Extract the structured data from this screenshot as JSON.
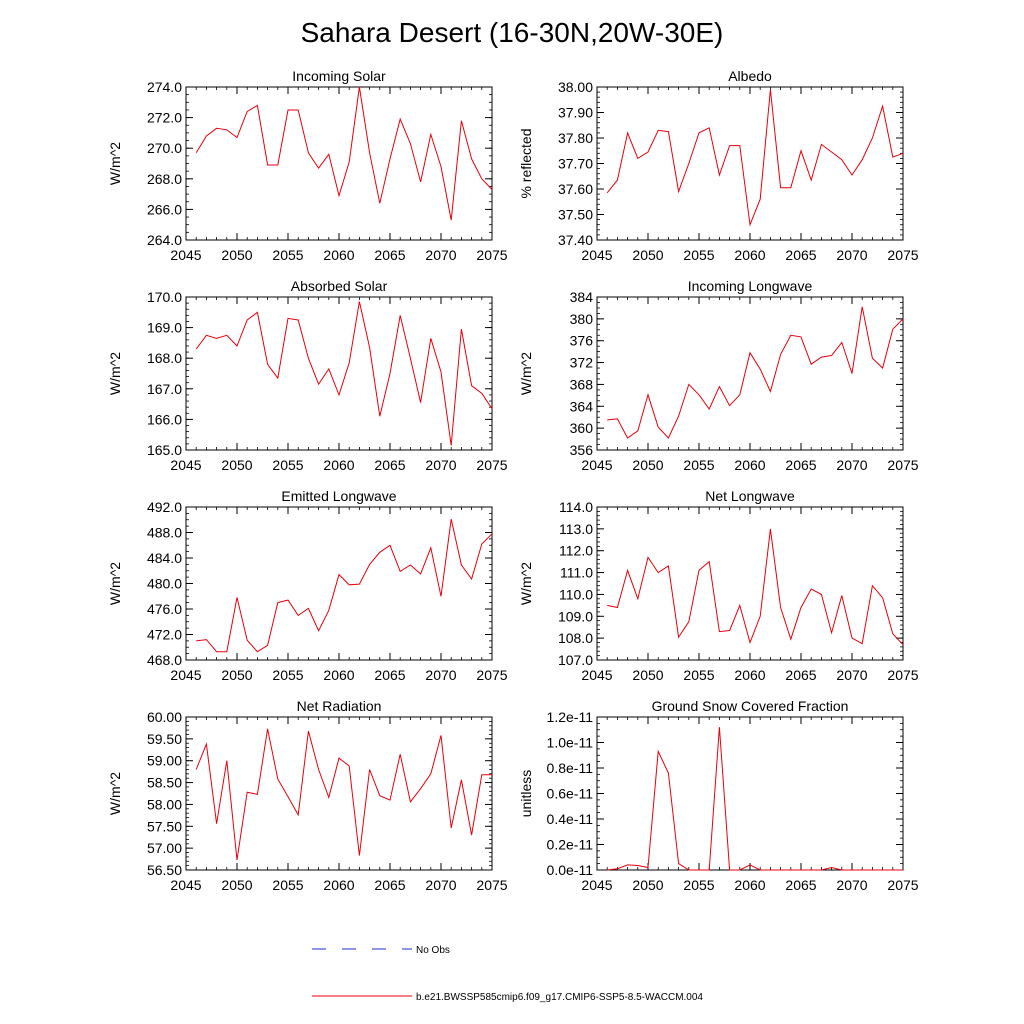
{
  "title": "Sahara Desert (16-30N,20W-30E)",
  "colors": {
    "model_line": "#e8000b",
    "obs_line": "#1f2dd0",
    "axis": "#000000"
  },
  "legend": {
    "obs_label": "No Obs",
    "model_label": "b.e21.BWSSP585cmip6.f09_g17.CMIP6-SSP5-8.5-WACCM.004"
  },
  "chart_data": [
    {
      "type": "line",
      "title": "Incoming Solar",
      "ylabel": "W/m^2",
      "xlim": [
        2045,
        2075
      ],
      "ylim": [
        264,
        274
      ],
      "xticks": [
        2045,
        2050,
        2055,
        2060,
        2065,
        2070,
        2075
      ],
      "yticks": [
        264,
        266,
        268,
        270,
        272,
        274
      ],
      "ytick_labels": [
        "264.0",
        "266.0",
        "268.0",
        "270.0",
        "272.0",
        "274.0"
      ],
      "yminor": 0.5,
      "x": [
        2046,
        2047,
        2048,
        2049,
        2050,
        2051,
        2052,
        2053,
        2054,
        2055,
        2056,
        2057,
        2058,
        2059,
        2060,
        2061,
        2062,
        2063,
        2064,
        2065,
        2066,
        2067,
        2068,
        2069,
        2070,
        2071,
        2072,
        2073,
        2074,
        2075
      ],
      "values": [
        269.7,
        270.8,
        271.3,
        271.2,
        270.7,
        272.4,
        272.8,
        268.9,
        268.9,
        272.5,
        272.5,
        269.7,
        268.7,
        269.6,
        266.9,
        269.1,
        274.1,
        269.7,
        266.4,
        269.3,
        271.9,
        270.3,
        267.8,
        270.9,
        268.8,
        265.3,
        271.8,
        269.3,
        268.0,
        267.3
      ]
    },
    {
      "type": "line",
      "title": "Albedo",
      "ylabel": "% reflected",
      "xlim": [
        2045,
        2075
      ],
      "ylim": [
        37.4,
        38.0
      ],
      "xticks": [
        2045,
        2050,
        2055,
        2060,
        2065,
        2070,
        2075
      ],
      "yticks": [
        37.4,
        37.5,
        37.6,
        37.7,
        37.8,
        37.9,
        38.0
      ],
      "ytick_labels": [
        "37.40",
        "37.50",
        "37.60",
        "37.70",
        "37.80",
        "37.90",
        "38.00"
      ],
      "yminor": 0.02,
      "x": [
        2046,
        2047,
        2048,
        2049,
        2050,
        2051,
        2052,
        2053,
        2054,
        2055,
        2056,
        2057,
        2058,
        2059,
        2060,
        2061,
        2062,
        2063,
        2064,
        2065,
        2066,
        2067,
        2068,
        2069,
        2070,
        2071,
        2072,
        2073,
        2074,
        2075
      ],
      "values": [
        37.585,
        37.635,
        37.82,
        37.72,
        37.745,
        37.83,
        37.825,
        37.59,
        37.7,
        37.82,
        37.84,
        37.655,
        37.77,
        37.77,
        37.46,
        37.56,
        37.99,
        37.605,
        37.605,
        37.75,
        37.635,
        37.775,
        37.745,
        37.715,
        37.655,
        37.715,
        37.8,
        37.925,
        37.725,
        37.74
      ]
    },
    {
      "type": "line",
      "title": "Absorbed Solar",
      "ylabel": "W/m^2",
      "xlim": [
        2045,
        2075
      ],
      "ylim": [
        165,
        170
      ],
      "xticks": [
        2045,
        2050,
        2055,
        2060,
        2065,
        2070,
        2075
      ],
      "yticks": [
        165,
        166,
        167,
        168,
        169,
        170
      ],
      "ytick_labels": [
        "165.0",
        "166.0",
        "167.0",
        "168.0",
        "169.0",
        "170.0"
      ],
      "yminor": 0.2,
      "x": [
        2046,
        2047,
        2048,
        2049,
        2050,
        2051,
        2052,
        2053,
        2054,
        2055,
        2056,
        2057,
        2058,
        2059,
        2060,
        2061,
        2062,
        2063,
        2064,
        2065,
        2066,
        2067,
        2068,
        2069,
        2070,
        2071,
        2072,
        2073,
        2074,
        2075
      ],
      "values": [
        168.3,
        168.75,
        168.65,
        168.75,
        168.4,
        169.25,
        169.5,
        167.8,
        167.35,
        169.3,
        169.25,
        168.0,
        167.15,
        167.65,
        166.8,
        167.85,
        169.85,
        168.35,
        166.1,
        167.5,
        169.4,
        168.0,
        166.55,
        168.65,
        167.55,
        165.15,
        168.95,
        167.1,
        166.85,
        166.35
      ]
    },
    {
      "type": "line",
      "title": "Incoming Longwave",
      "ylabel": "W/m^2",
      "xlim": [
        2045,
        2075
      ],
      "ylim": [
        356,
        384
      ],
      "xticks": [
        2045,
        2050,
        2055,
        2060,
        2065,
        2070,
        2075
      ],
      "yticks": [
        356,
        360,
        364,
        368,
        372,
        376,
        380,
        384
      ],
      "ytick_labels": [
        "356",
        "360",
        "364",
        "368",
        "372",
        "376",
        "380",
        "384"
      ],
      "yminor": 1,
      "x": [
        2046,
        2047,
        2048,
        2049,
        2050,
        2051,
        2052,
        2053,
        2054,
        2055,
        2056,
        2057,
        2058,
        2059,
        2060,
        2061,
        2062,
        2063,
        2064,
        2065,
        2066,
        2067,
        2068,
        2069,
        2070,
        2071,
        2072,
        2073,
        2074,
        2075
      ],
      "values": [
        361.5,
        361.7,
        358.2,
        359.5,
        366.1,
        360.2,
        358.2,
        362.2,
        368.0,
        366.1,
        363.5,
        367.6,
        364.1,
        366.1,
        373.8,
        370.8,
        366.7,
        373.5,
        377.0,
        376.7,
        371.7,
        373.0,
        373.3,
        375.7,
        370.0,
        382.2,
        372.8,
        371.0,
        378.1,
        380.0
      ]
    },
    {
      "type": "line",
      "title": "Emitted Longwave",
      "ylabel": "W/m^2",
      "xlim": [
        2045,
        2075
      ],
      "ylim": [
        468,
        492
      ],
      "xticks": [
        2045,
        2050,
        2055,
        2060,
        2065,
        2070,
        2075
      ],
      "yticks": [
        468,
        472,
        476,
        480,
        484,
        488,
        492
      ],
      "ytick_labels": [
        "468.0",
        "472.0",
        "476.0",
        "480.0",
        "484.0",
        "488.0",
        "492.0"
      ],
      "yminor": 1,
      "x": [
        2046,
        2047,
        2048,
        2049,
        2050,
        2051,
        2052,
        2053,
        2054,
        2055,
        2056,
        2057,
        2058,
        2059,
        2060,
        2061,
        2062,
        2063,
        2064,
        2065,
        2066,
        2067,
        2068,
        2069,
        2070,
        2071,
        2072,
        2073,
        2074,
        2075
      ],
      "values": [
        471.0,
        471.2,
        469.3,
        469.3,
        477.8,
        471.1,
        469.3,
        470.3,
        477.0,
        477.4,
        475.0,
        476.1,
        472.6,
        475.8,
        481.4,
        479.8,
        479.9,
        483.0,
        484.9,
        486.0,
        481.9,
        482.9,
        481.5,
        485.6,
        478.0,
        490.1,
        482.9,
        480.7,
        486.2,
        487.8
      ]
    },
    {
      "type": "line",
      "title": "Net Longwave",
      "ylabel": "W/m^2",
      "xlim": [
        2045,
        2075
      ],
      "ylim": [
        107,
        114
      ],
      "xticks": [
        2045,
        2050,
        2055,
        2060,
        2065,
        2070,
        2075
      ],
      "yticks": [
        107,
        108,
        109,
        110,
        111,
        112,
        113,
        114
      ],
      "ytick_labels": [
        "107.0",
        "108.0",
        "109.0",
        "110.0",
        "111.0",
        "112.0",
        "113.0",
        "114.0"
      ],
      "yminor": 0.2,
      "x": [
        2046,
        2047,
        2048,
        2049,
        2050,
        2051,
        2052,
        2053,
        2054,
        2055,
        2056,
        2057,
        2058,
        2059,
        2060,
        2061,
        2062,
        2063,
        2064,
        2065,
        2066,
        2067,
        2068,
        2069,
        2070,
        2071,
        2072,
        2073,
        2074,
        2075
      ],
      "values": [
        109.5,
        109.4,
        111.1,
        109.8,
        111.7,
        111.0,
        111.3,
        108.05,
        108.75,
        111.1,
        111.5,
        108.3,
        108.35,
        109.5,
        107.8,
        109.0,
        113.0,
        109.4,
        107.95,
        109.4,
        110.25,
        110.0,
        108.25,
        109.95,
        108.0,
        107.75,
        110.4,
        109.85,
        108.2,
        107.7
      ]
    },
    {
      "type": "line",
      "title": "Net Radiation",
      "ylabel": "W/m^2",
      "xlim": [
        2045,
        2075
      ],
      "ylim": [
        56.5,
        60.0
      ],
      "xticks": [
        2045,
        2050,
        2055,
        2060,
        2065,
        2070,
        2075
      ],
      "yticks": [
        56.5,
        57.0,
        57.5,
        58.0,
        58.5,
        59.0,
        59.5,
        60.0
      ],
      "ytick_labels": [
        "56.50",
        "57.00",
        "57.50",
        "58.00",
        "58.50",
        "59.00",
        "59.50",
        "60.00"
      ],
      "yminor": 0.1,
      "x": [
        2046,
        2047,
        2048,
        2049,
        2050,
        2051,
        2052,
        2053,
        2054,
        2055,
        2056,
        2057,
        2058,
        2059,
        2060,
        2061,
        2062,
        2063,
        2064,
        2065,
        2066,
        2067,
        2068,
        2069,
        2070,
        2071,
        2072,
        2073,
        2074,
        2075
      ],
      "values": [
        58.8,
        59.38,
        57.56,
        59.0,
        56.73,
        58.28,
        58.23,
        59.73,
        58.58,
        58.18,
        57.76,
        59.68,
        58.8,
        58.16,
        59.06,
        58.88,
        56.83,
        58.8,
        58.2,
        58.1,
        59.15,
        58.06,
        58.36,
        58.7,
        59.58,
        57.46,
        58.56,
        57.3,
        58.68,
        58.68
      ]
    },
    {
      "type": "line",
      "title": "Ground Snow Covered Fraction",
      "ylabel": "unitless",
      "xlim": [
        2045,
        2075
      ],
      "ylim": [
        0,
        1.2e-11
      ],
      "xticks": [
        2045,
        2050,
        2055,
        2060,
        2065,
        2070,
        2075
      ],
      "yticks": [
        0,
        2e-12,
        4e-12,
        6e-12,
        8e-12,
        1e-11,
        1.2e-11
      ],
      "ytick_labels": [
        "0.0e-11",
        "0.2e-11",
        "0.4e-11",
        "0.6e-11",
        "0.8e-11",
        "1.0e-11",
        "1.2e-11"
      ],
      "yminor": 5e-13,
      "x": [
        2046,
        2047,
        2048,
        2049,
        2050,
        2051,
        2052,
        2053,
        2054,
        2055,
        2056,
        2057,
        2058,
        2059,
        2060,
        2061,
        2062,
        2063,
        2064,
        2065,
        2066,
        2067,
        2068,
        2069,
        2070,
        2071,
        2072,
        2073,
        2074,
        2075
      ],
      "values": [
        0,
        1e-13,
        4e-13,
        3.5e-13,
        2e-13,
        9.3e-12,
        7.6e-12,
        5e-13,
        0,
        0,
        0,
        1.12e-11,
        0,
        0,
        4e-13,
        0,
        0,
        0,
        0,
        0,
        0,
        0,
        2e-13,
        0,
        0,
        0,
        0,
        0,
        0,
        0
      ]
    }
  ]
}
